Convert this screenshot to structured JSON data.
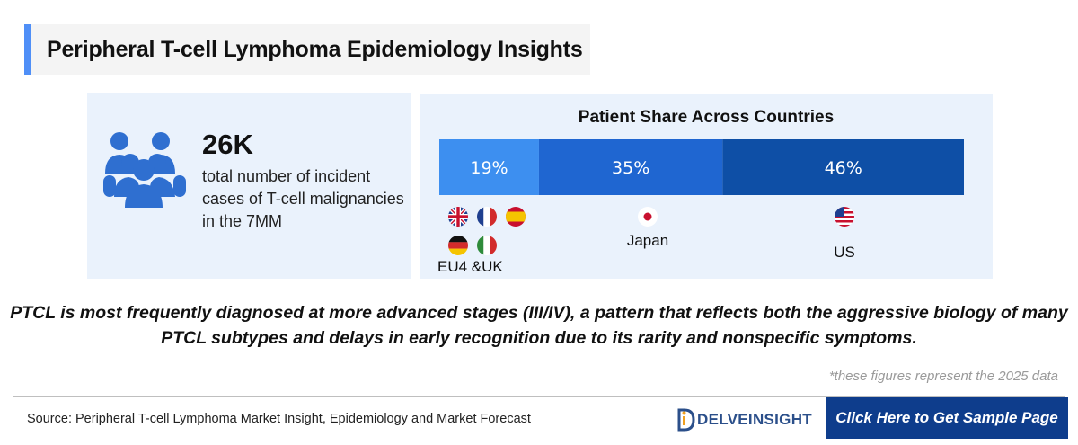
{
  "header": {
    "title": "Peripheral T-cell Lymphoma Epidemiology Insights"
  },
  "stat": {
    "value": "26K",
    "description": "total number of incident cases of T-cell malignancies in the 7MM",
    "icon": "people-group-icon"
  },
  "chart_data": {
    "type": "bar",
    "orientation": "horizontal-stacked",
    "title": "Patient Share Across Countries",
    "categories": [
      "EU4 &UK",
      "Japan",
      "US"
    ],
    "values": [
      19,
      35,
      46
    ],
    "value_labels": [
      "19%",
      "35%",
      "46%"
    ],
    "colors": [
      "#3d8ff0",
      "#1f66d1",
      "#0e4fa6"
    ],
    "xlim": [
      0,
      100
    ],
    "grid": false
  },
  "flags": {
    "eu4uk": [
      "uk-flag-icon",
      "france-flag-icon",
      "spain-flag-icon",
      "germany-flag-icon",
      "italy-flag-icon"
    ],
    "japan": [
      "japan-flag-icon"
    ],
    "us": [
      "us-flag-icon"
    ]
  },
  "insight": "PTCL is most frequently diagnosed at more advanced stages (III/IV), a pattern that reflects both the aggressive biology of many PTCL subtypes and delays in early recognition due to its rarity and nonspecific symptoms.",
  "footnote": "*these figures represent the 2025 data",
  "footer": {
    "source": "Source: Peripheral T-cell Lymphoma Market Insight, Epidemiology and Market Forecast",
    "logo_text": "DELVEINSIGHT",
    "cta_label": "Click Here to Get Sample Page"
  }
}
